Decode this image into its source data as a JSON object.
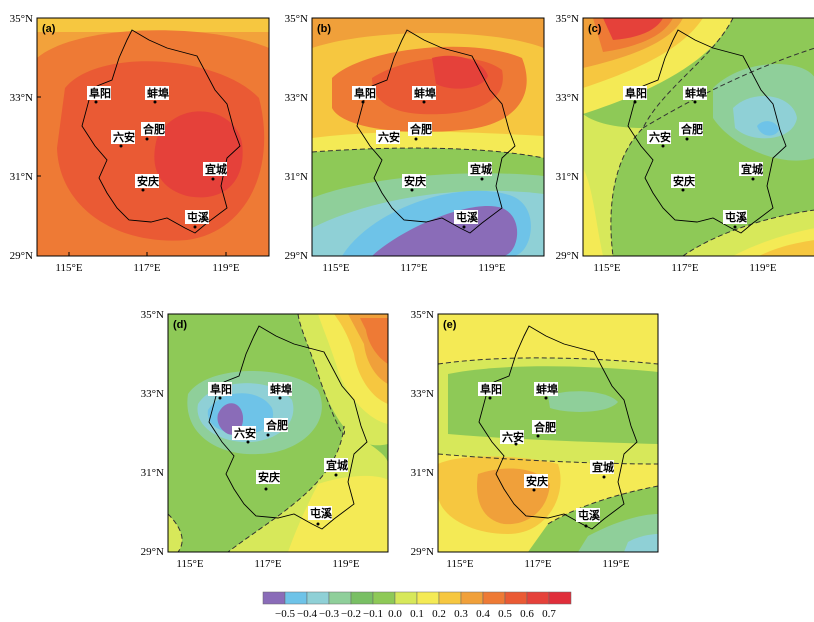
{
  "colors": {
    "lt_-0.5": "#8a6cb8",
    "-0.5_-0.4": "#6ec3e8",
    "-0.4_-0.3": "#8fd0d6",
    "-0.3_-0.2": "#8fcf9a",
    "-0.2_-0.1": "#79bf64",
    "-0.1_0.0": "#8ec957",
    "0.0_0.1": "#d7e85a",
    "0.1_0.2": "#f4ea55",
    "0.2_0.3": "#f6c740",
    "0.3_0.4": "#f0a03a",
    "0.4_0.5": "#ee7a35",
    "0.5_0.6": "#ea5a34",
    "0.6_0.7": "#e5413a",
    "gt_0.7": "#e02e3a"
  },
  "colorbar": {
    "ticks": [
      "−0.5",
      "−0.4",
      "−0.3",
      "−0.2",
      "−0.1",
      "0.0",
      "0.1",
      "0.2",
      "0.3",
      "0.4",
      "0.5",
      "0.6",
      "0.7"
    ]
  },
  "axes": {
    "y_ticks": [
      "35°N",
      "33°N",
      "31°N",
      "29°N"
    ],
    "x_ticks": [
      "115°E",
      "117°E",
      "119°E"
    ]
  },
  "cities": [
    "阜阳",
    "蚌埠",
    "六安",
    "合肥",
    "安庆",
    "宜城",
    "屯溪"
  ],
  "panels": [
    {
      "id": "a",
      "label": "(a)"
    },
    {
      "id": "b",
      "label": "(b)"
    },
    {
      "id": "c",
      "label": "(c)"
    },
    {
      "id": "d",
      "label": "(d)"
    },
    {
      "id": "e",
      "label": "(e)"
    }
  ]
}
